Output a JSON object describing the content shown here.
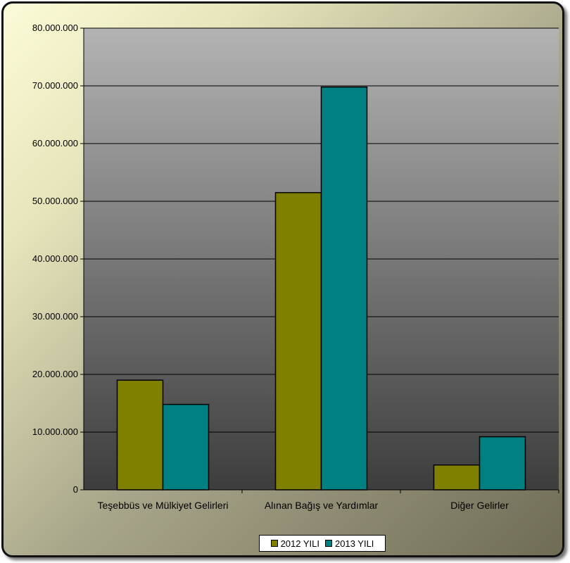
{
  "chart_data": {
    "type": "bar",
    "categories": [
      "Teşebbüs ve Mülkiyet Gelirleri",
      "Alınan Bağış ve Yardımlar",
      "Diğer Gelirler"
    ],
    "series": [
      {
        "name": "2012 YILI",
        "color": "#808000",
        "values": [
          19000000,
          51500000,
          4300000
        ]
      },
      {
        "name": "2013 YILI",
        "color": "#008080",
        "values": [
          14800000,
          69800000,
          9200000
        ]
      }
    ],
    "ylim": [
      0,
      80000000
    ],
    "y_ticks": [
      "0",
      "10.000.000",
      "20.000.000",
      "30.000.000",
      "40.000.000",
      "50.000.000",
      "60.000.000",
      "70.000.000",
      "80.000.000"
    ],
    "title": "",
    "xlabel": "",
    "ylabel": "",
    "grid": true,
    "legend_position": "bottom"
  }
}
